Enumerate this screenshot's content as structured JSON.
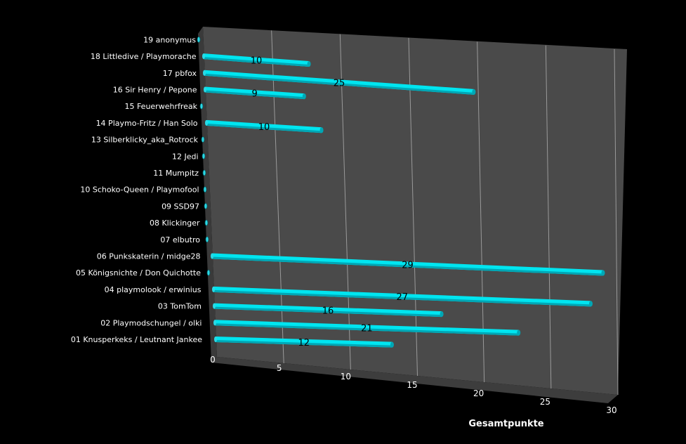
{
  "chart_data": {
    "type": "bar",
    "orientation": "horizontal",
    "style": "3d-cylinder",
    "categories": [
      "01 Knusperkeks / Leutnant Jankee",
      "02 Playmodschungel / olki",
      "03 TomTom",
      "04 playmolook / erwinius",
      "05 Königsnichte / Don Quichotte",
      "06 Punkskaterin / midge28",
      "07 elbutro",
      "08 Klickinger",
      "09 SSD97",
      "10 Schoko-Queen / Playmofool",
      "11 Mumpitz",
      "12 Jedi",
      "13 Silberklicky_aka_Rotrock",
      "14 Playmo-Fritz / Han Solo",
      "15 Feuerwehrfreak",
      "16 Sir Henry / Pepone",
      "17 pbfox",
      "18 Littledive / Playmorache",
      "19 anonymus"
    ],
    "values": [
      12,
      21,
      16,
      27,
      0,
      29,
      0,
      0,
      0,
      0,
      0,
      0,
      0,
      10,
      0,
      9,
      25,
      10,
      0
    ],
    "data_labels": [
      "12",
      "21",
      "16",
      "27",
      "",
      "29",
      "",
      "",
      "",
      "",
      "",
      "",
      "",
      "10",
      "",
      "9",
      "25",
      "10",
      ""
    ],
    "xlabel": "Gesamtpunkte",
    "xlim": [
      0,
      30
    ],
    "xticks": [
      "0",
      "5",
      "10",
      "15",
      "20",
      "25",
      "30"
    ],
    "grid": true,
    "legend": "none",
    "colors": {
      "background": "#000000",
      "plot_wall": "#4a4a4a",
      "floor": "#3a3a3a",
      "gridline": "#9a9a9a",
      "bar": "#00e5f0",
      "bar_shade": "#00a7b5",
      "bar_cap": "#2ad9e6",
      "text": "#ffffff",
      "data_label": "#000000"
    }
  }
}
